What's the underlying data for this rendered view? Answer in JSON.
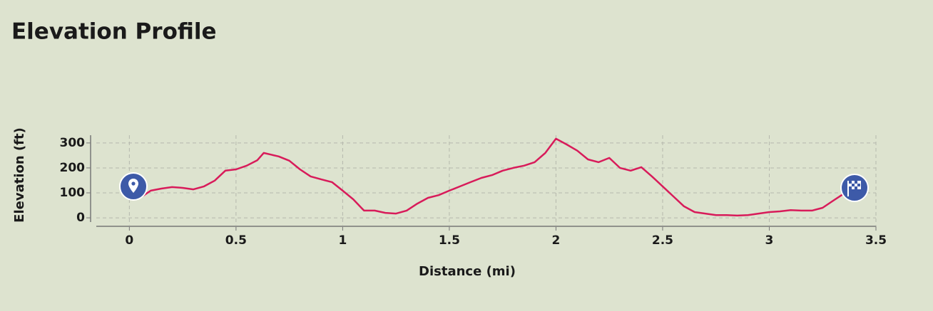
{
  "chart_data": {
    "type": "line",
    "title": "Elevation Profile",
    "x_label": "Distance (mi)",
    "y_label": "Elevation (ft)",
    "x": [
      0.05,
      0.1,
      0.15,
      0.2,
      0.25,
      0.3,
      0.35,
      0.4,
      0.45,
      0.5,
      0.55,
      0.6,
      0.63,
      0.7,
      0.75,
      0.8,
      0.85,
      0.9,
      0.95,
      1.0,
      1.05,
      1.1,
      1.15,
      1.2,
      1.25,
      1.3,
      1.35,
      1.4,
      1.45,
      1.5,
      1.55,
      1.6,
      1.65,
      1.7,
      1.75,
      1.8,
      1.85,
      1.9,
      1.95,
      2.0,
      2.05,
      2.1,
      2.15,
      2.2,
      2.25,
      2.3,
      2.35,
      2.4,
      2.45,
      2.5,
      2.55,
      2.6,
      2.65,
      2.7,
      2.75,
      2.8,
      2.85,
      2.9,
      2.95,
      3.0,
      3.05,
      3.1,
      3.15,
      3.2,
      3.25,
      3.3,
      3.35,
      3.38
    ],
    "series": [
      {
        "name": "Elevation",
        "color": "#d81b5a",
        "values": [
          80,
          109,
          117,
          123,
          120,
          114,
          126,
          149,
          189,
          194,
          209,
          231,
          260,
          246,
          229,
          194,
          166,
          154,
          143,
          109,
          74,
          29,
          29,
          20,
          17,
          29,
          57,
          80,
          91,
          109,
          126,
          143,
          160,
          171,
          189,
          200,
          209,
          223,
          260,
          317,
          294,
          269,
          234,
          223,
          240,
          200,
          189,
          203,
          166,
          126,
          86,
          46,
          23,
          17,
          11,
          11,
          9,
          11,
          17,
          23,
          26,
          31,
          29,
          29,
          40,
          69,
          97,
          117
        ]
      }
    ],
    "xlim": [
      -0.155,
      3.5
    ],
    "xticks": [
      0,
      0.5,
      1,
      1.5,
      2,
      2.5,
      3,
      3.5
    ],
    "ylim": [
      -34,
      331
    ],
    "yticks": [
      0,
      100,
      200,
      300
    ],
    "grid": true
  }
}
